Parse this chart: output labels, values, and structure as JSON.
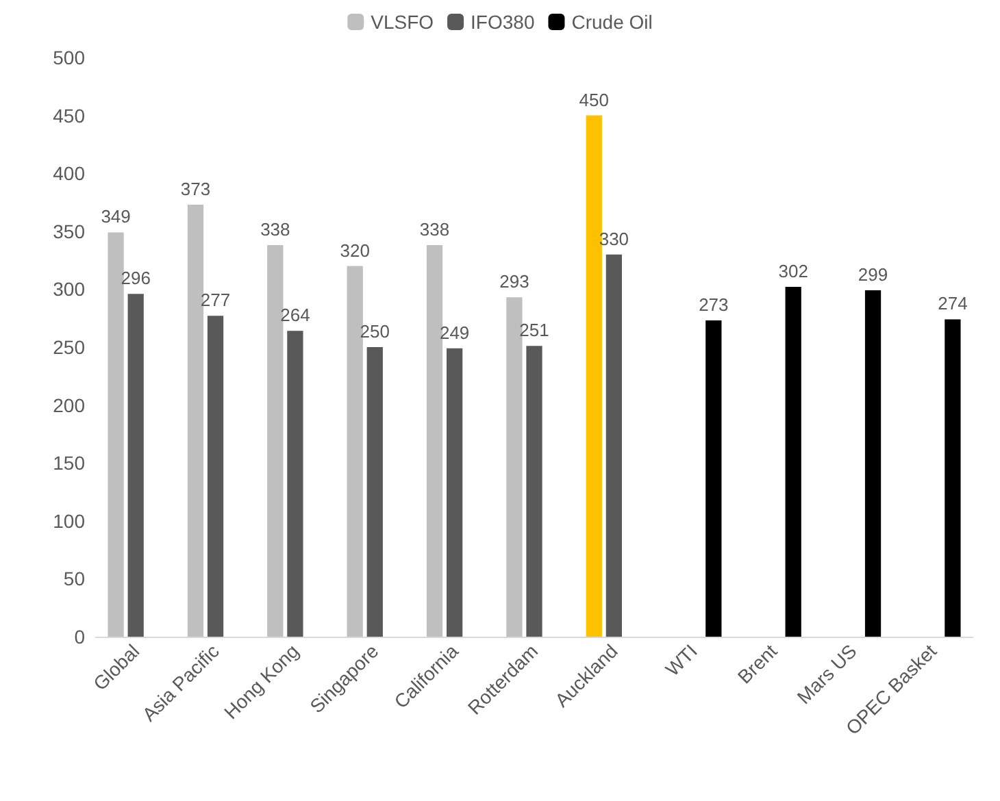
{
  "chart_data": {
    "type": "bar",
    "categories": [
      "Global",
      "Asia Pacific",
      "Hong Kong",
      "Singapore",
      "California",
      "Rotterdam",
      "Auckland",
      "WTI",
      "Brent",
      "Mars US",
      "OPEC Basket"
    ],
    "series": [
      {
        "name": "VLSFO",
        "color": "#bfbfbf",
        "colors": [
          "#bfbfbf",
          "#bfbfbf",
          "#bfbfbf",
          "#bfbfbf",
          "#bfbfbf",
          "#bfbfbf",
          "#ffc000",
          null,
          null,
          null,
          null
        ],
        "values": [
          349,
          373,
          338,
          320,
          338,
          293,
          450,
          null,
          null,
          null,
          null
        ]
      },
      {
        "name": "IFO380",
        "color": "#595959",
        "values": [
          296,
          277,
          264,
          250,
          249,
          251,
          330,
          null,
          null,
          null,
          null
        ]
      },
      {
        "name": "Crude Oil",
        "color": "#000000",
        "values": [
          null,
          null,
          null,
          null,
          null,
          null,
          null,
          273,
          302,
          299,
          274
        ]
      }
    ],
    "ylim": [
      0,
      500
    ],
    "yticks": [
      0,
      50,
      100,
      150,
      200,
      250,
      300,
      350,
      400,
      450,
      500
    ],
    "grid": false,
    "legend": "top",
    "data_labels": true
  }
}
